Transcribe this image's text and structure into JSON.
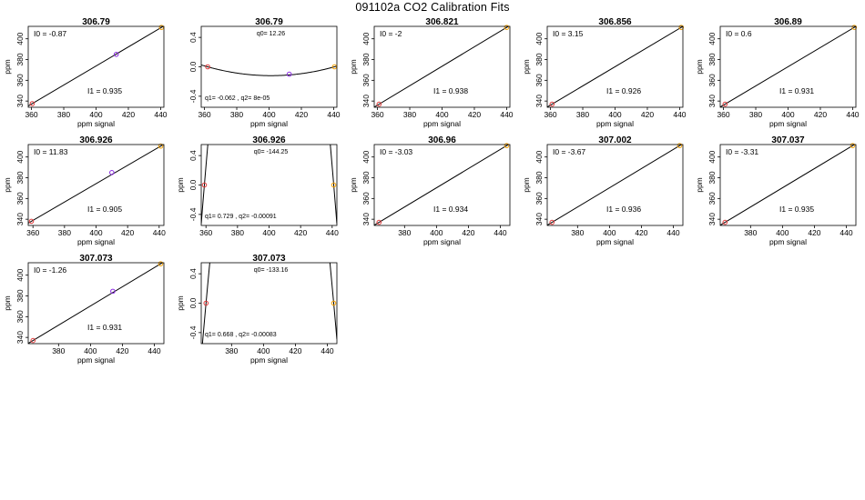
{
  "title": "091102a   CO2 Calibration Fits",
  "colors": {
    "low_point": "#e23b3b",
    "mid_point": "#8a2be2",
    "high_point": "#f5a000",
    "line": "#000000"
  },
  "chart_data": [
    {
      "type": "scatter",
      "title": "306.79",
      "xlabel": "ppm signal",
      "ylabel": "ppm",
      "xlim": [
        358,
        442
      ],
      "ylim": [
        334,
        412
      ],
      "xticks": [
        "360",
        "380",
        "400",
        "420",
        "440"
      ],
      "yticks": [
        "340",
        "360",
        "380",
        "400"
      ],
      "points": [
        {
          "x": 360.5,
          "y": 337.5,
          "color": "low"
        },
        {
          "x": 412.5,
          "y": 385,
          "color": "mid"
        },
        {
          "x": 440.5,
          "y": 411,
          "color": "high"
        }
      ],
      "fit": {
        "kind": "linear",
        "i0": -0.87,
        "i1": 0.935
      },
      "annotations": {
        "top": "I0 =  -0.87",
        "bottom": "I1 =  0.935"
      }
    },
    {
      "type": "scatter",
      "title": "306.79",
      "xlabel": "ppm signal",
      "ylabel": "",
      "xlim": [
        358,
        442
      ],
      "ylim": [
        -0.55,
        0.55
      ],
      "xticks": [
        "360",
        "380",
        "400",
        "420",
        "440"
      ],
      "yticks": [
        "-0.4",
        "0.0",
        "0.4"
      ],
      "points": [
        {
          "x": 362,
          "y": 0,
          "color": "low"
        },
        {
          "x": 412.5,
          "y": -0.1,
          "color": "mid"
        },
        {
          "x": 440.5,
          "y": 0,
          "color": "high"
        }
      ],
      "fit": {
        "kind": "quadratic",
        "roots": [
          362,
          440.5
        ],
        "vertex": [
          401,
          -0.12
        ]
      },
      "annotations": {
        "top": "q0= 12.26",
        "bottom": "q1= -0.062 , q2= 8e-05"
      }
    },
    {
      "type": "scatter",
      "title": "306.821",
      "xlabel": "ppm signal",
      "ylabel": "ppm",
      "xlim": [
        358,
        442
      ],
      "ylim": [
        334,
        412
      ],
      "xticks": [
        "360",
        "380",
        "400",
        "420",
        "440"
      ],
      "yticks": [
        "340",
        "360",
        "380",
        "400"
      ],
      "points": [
        {
          "x": 361,
          "y": 337,
          "color": "low"
        },
        {
          "x": 440,
          "y": 411,
          "color": "high"
        }
      ],
      "fit": {
        "kind": "linear",
        "i0": -2,
        "i1": 0.938
      },
      "annotations": {
        "top": "I0 =  -2",
        "bottom": "I1 =  0.938"
      }
    },
    {
      "type": "scatter",
      "title": "306.856",
      "xlabel": "ppm signal",
      "ylabel": "ppm",
      "xlim": [
        358,
        442
      ],
      "ylim": [
        334,
        412
      ],
      "xticks": [
        "360",
        "380",
        "400",
        "420",
        "440"
      ],
      "yticks": [
        "340",
        "360",
        "380",
        "400"
      ],
      "points": [
        {
          "x": 361,
          "y": 337,
          "color": "low"
        },
        {
          "x": 441,
          "y": 411,
          "color": "high"
        }
      ],
      "fit": {
        "kind": "linear",
        "i0": 3.15,
        "i1": 0.926
      },
      "annotations": {
        "top": "I0 =  3.15",
        "bottom": "I1 =  0.926"
      }
    },
    {
      "type": "scatter",
      "title": "306.89",
      "xlabel": "ppm signal",
      "ylabel": "ppm",
      "xlim": [
        358,
        442
      ],
      "ylim": [
        334,
        412
      ],
      "xticks": [
        "360",
        "380",
        "400",
        "420",
        "440"
      ],
      "yticks": [
        "340",
        "360",
        "380",
        "400"
      ],
      "points": [
        {
          "x": 361,
          "y": 337,
          "color": "low"
        },
        {
          "x": 441,
          "y": 411,
          "color": "high"
        }
      ],
      "fit": {
        "kind": "linear",
        "i0": 0.6,
        "i1": 0.931
      },
      "annotations": {
        "top": "I0 =  0.6",
        "bottom": "I1 =  0.931"
      }
    },
    {
      "type": "scatter",
      "title": "306.926",
      "xlabel": "ppm signal",
      "ylabel": "ppm",
      "xlim": [
        357,
        443
      ],
      "ylim": [
        334,
        412
      ],
      "xticks": [
        "360",
        "380",
        "400",
        "420",
        "440"
      ],
      "yticks": [
        "340",
        "360",
        "380",
        "400"
      ],
      "points": [
        {
          "x": 359,
          "y": 338,
          "color": "low"
        },
        {
          "x": 410,
          "y": 385,
          "color": "mid"
        },
        {
          "x": 441,
          "y": 410.5,
          "color": "high"
        }
      ],
      "fit": {
        "kind": "linear",
        "i0": 11.83,
        "i1": 0.905
      },
      "annotations": {
        "top": "I0 =  11.83",
        "bottom": "I1 =  0.905"
      }
    },
    {
      "type": "scatter",
      "title": "306.926",
      "xlabel": "",
      "ylabel": "ppm",
      "xlim": [
        357,
        443
      ],
      "ylim": [
        -0.55,
        0.55
      ],
      "xticks": [
        "360",
        "380",
        "400",
        "420",
        "440"
      ],
      "yticks": [
        "-0.4",
        "0.0",
        "0.4"
      ],
      "points": [
        {
          "x": 359,
          "y": 0,
          "color": "low"
        },
        {
          "x": 441,
          "y": 0,
          "color": "high"
        }
      ],
      "fit": {
        "kind": "quadratic",
        "roots": [
          359,
          441
        ],
        "vertex": [
          400,
          5.3
        ]
      },
      "annotations": {
        "top": "q0= -144.25",
        "bottom": "q1= 0.729 , q2= -0.00091"
      }
    },
    {
      "type": "scatter",
      "title": "306.96",
      "xlabel": "ppm signal",
      "ylabel": "ppm",
      "xlim": [
        361,
        446
      ],
      "ylim": [
        334,
        412
      ],
      "xticks": [
        "380",
        "400",
        "420",
        "440"
      ],
      "yticks": [
        "340",
        "360",
        "380",
        "400"
      ],
      "points": [
        {
          "x": 364,
          "y": 337,
          "color": "low"
        },
        {
          "x": 444,
          "y": 411,
          "color": "high"
        }
      ],
      "fit": {
        "kind": "linear",
        "i0": -3.03,
        "i1": 0.934
      },
      "annotations": {
        "top": "I0 =  -3.03",
        "bottom": "I1 =  0.934"
      }
    },
    {
      "type": "scatter",
      "title": "307.002",
      "xlabel": "ppm signal",
      "ylabel": "ppm",
      "xlim": [
        361,
        446
      ],
      "ylim": [
        334,
        412
      ],
      "xticks": [
        "380",
        "400",
        "420",
        "440"
      ],
      "yticks": [
        "340",
        "360",
        "380",
        "400"
      ],
      "points": [
        {
          "x": 364,
          "y": 337,
          "color": "low"
        },
        {
          "x": 444,
          "y": 411,
          "color": "high"
        }
      ],
      "fit": {
        "kind": "linear",
        "i0": -3.67,
        "i1": 0.936
      },
      "annotations": {
        "top": "I0 =  -3.67",
        "bottom": "I1 =  0.936"
      }
    },
    {
      "type": "scatter",
      "title": "307.037",
      "xlabel": "ppm signal",
      "ylabel": "ppm",
      "xlim": [
        361,
        446
      ],
      "ylim": [
        334,
        412
      ],
      "xticks": [
        "380",
        "400",
        "420",
        "440"
      ],
      "yticks": [
        "340",
        "360",
        "380",
        "400"
      ],
      "points": [
        {
          "x": 364,
          "y": 337,
          "color": "low"
        },
        {
          "x": 444,
          "y": 411,
          "color": "high"
        }
      ],
      "fit": {
        "kind": "linear",
        "i0": -3.31,
        "i1": 0.935
      },
      "annotations": {
        "top": "I0 =  -3.31",
        "bottom": "I1 =  0.935"
      }
    },
    {
      "type": "scatter",
      "title": "307.073",
      "xlabel": "ppm signal",
      "ylabel": "ppm",
      "xlim": [
        361,
        446
      ],
      "ylim": [
        334,
        412
      ],
      "xticks": [
        "380",
        "400",
        "420",
        "440"
      ],
      "yticks": [
        "340",
        "360",
        "380",
        "400"
      ],
      "points": [
        {
          "x": 364,
          "y": 337,
          "color": "low"
        },
        {
          "x": 414,
          "y": 384.5,
          "color": "mid"
        },
        {
          "x": 444,
          "y": 411,
          "color": "high"
        }
      ],
      "fit": {
        "kind": "linear",
        "i0": -1.26,
        "i1": 0.931
      },
      "annotations": {
        "top": "I0 =  -1.26",
        "bottom": "I1 =  0.931"
      }
    },
    {
      "type": "scatter",
      "title": "307.073",
      "xlabel": "ppm signal",
      "ylabel": "ppm",
      "xlim": [
        361,
        446
      ],
      "ylim": [
        -0.55,
        0.55
      ],
      "xticks": [
        "380",
        "400",
        "420",
        "440"
      ],
      "yticks": [
        "-0.4",
        "0.0",
        "0.4"
      ],
      "points": [
        {
          "x": 364,
          "y": 0,
          "color": "low"
        },
        {
          "x": 444,
          "y": 0,
          "color": "high"
        }
      ],
      "fit": {
        "kind": "quadratic",
        "roots": [
          364,
          444
        ],
        "vertex": [
          404,
          4.8
        ]
      },
      "annotations": {
        "top": "q0= -133.16",
        "bottom": "q1= 0.668 , q2= -0.00083"
      }
    }
  ]
}
